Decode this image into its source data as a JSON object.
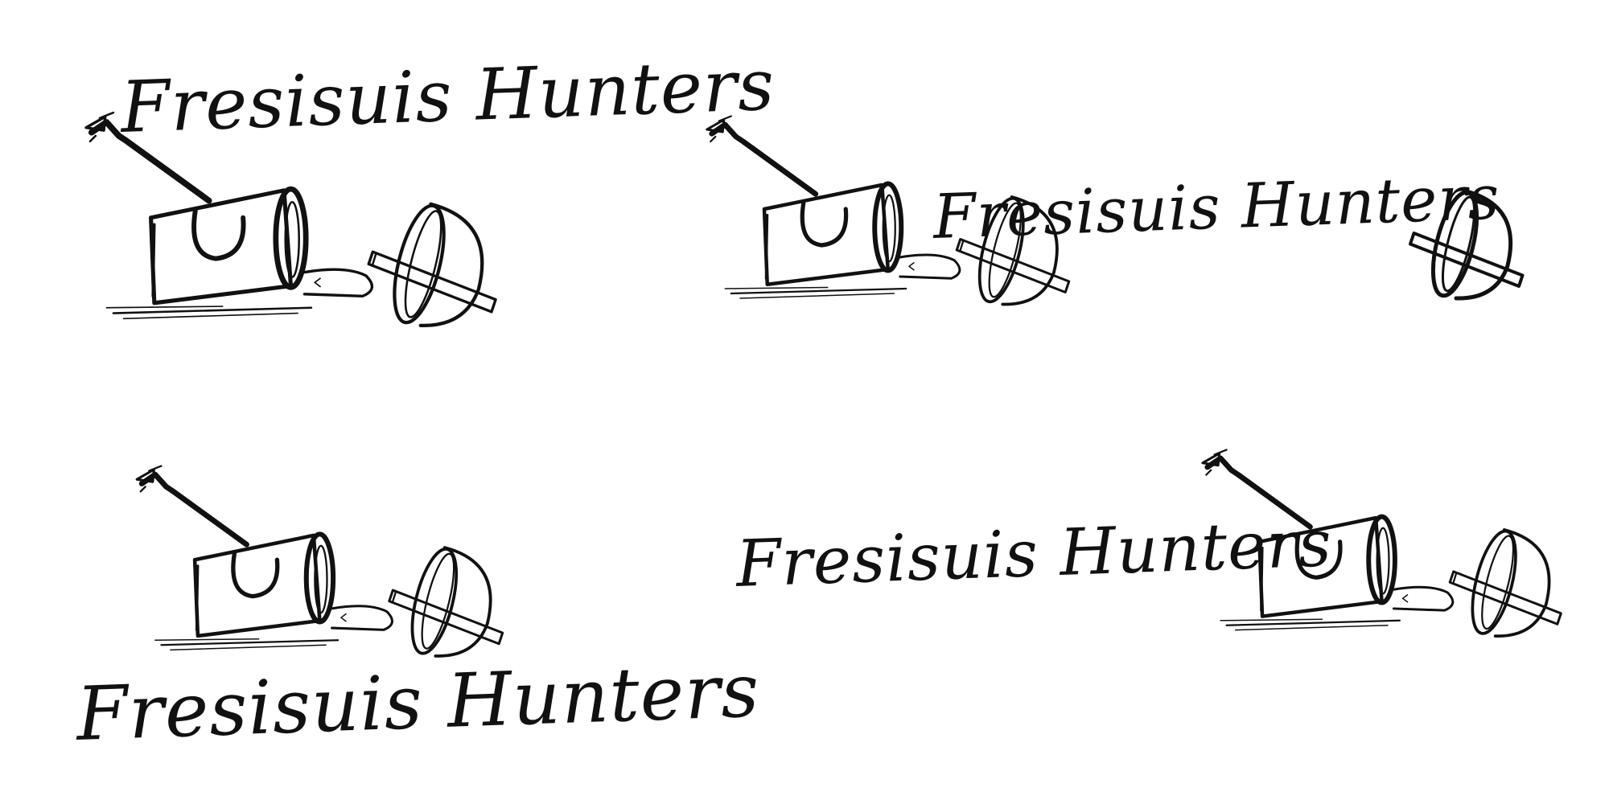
{
  "brand": {
    "ink_color": "#111111",
    "background_color": "#ffffff"
  },
  "variants": [
    {
      "label": "Fresisuis Hunters"
    },
    {
      "label": "Fresisuis Hunters"
    },
    {
      "label": "Fresisuis Hunters"
    },
    {
      "label": "Fresisuis Hunters"
    }
  ]
}
